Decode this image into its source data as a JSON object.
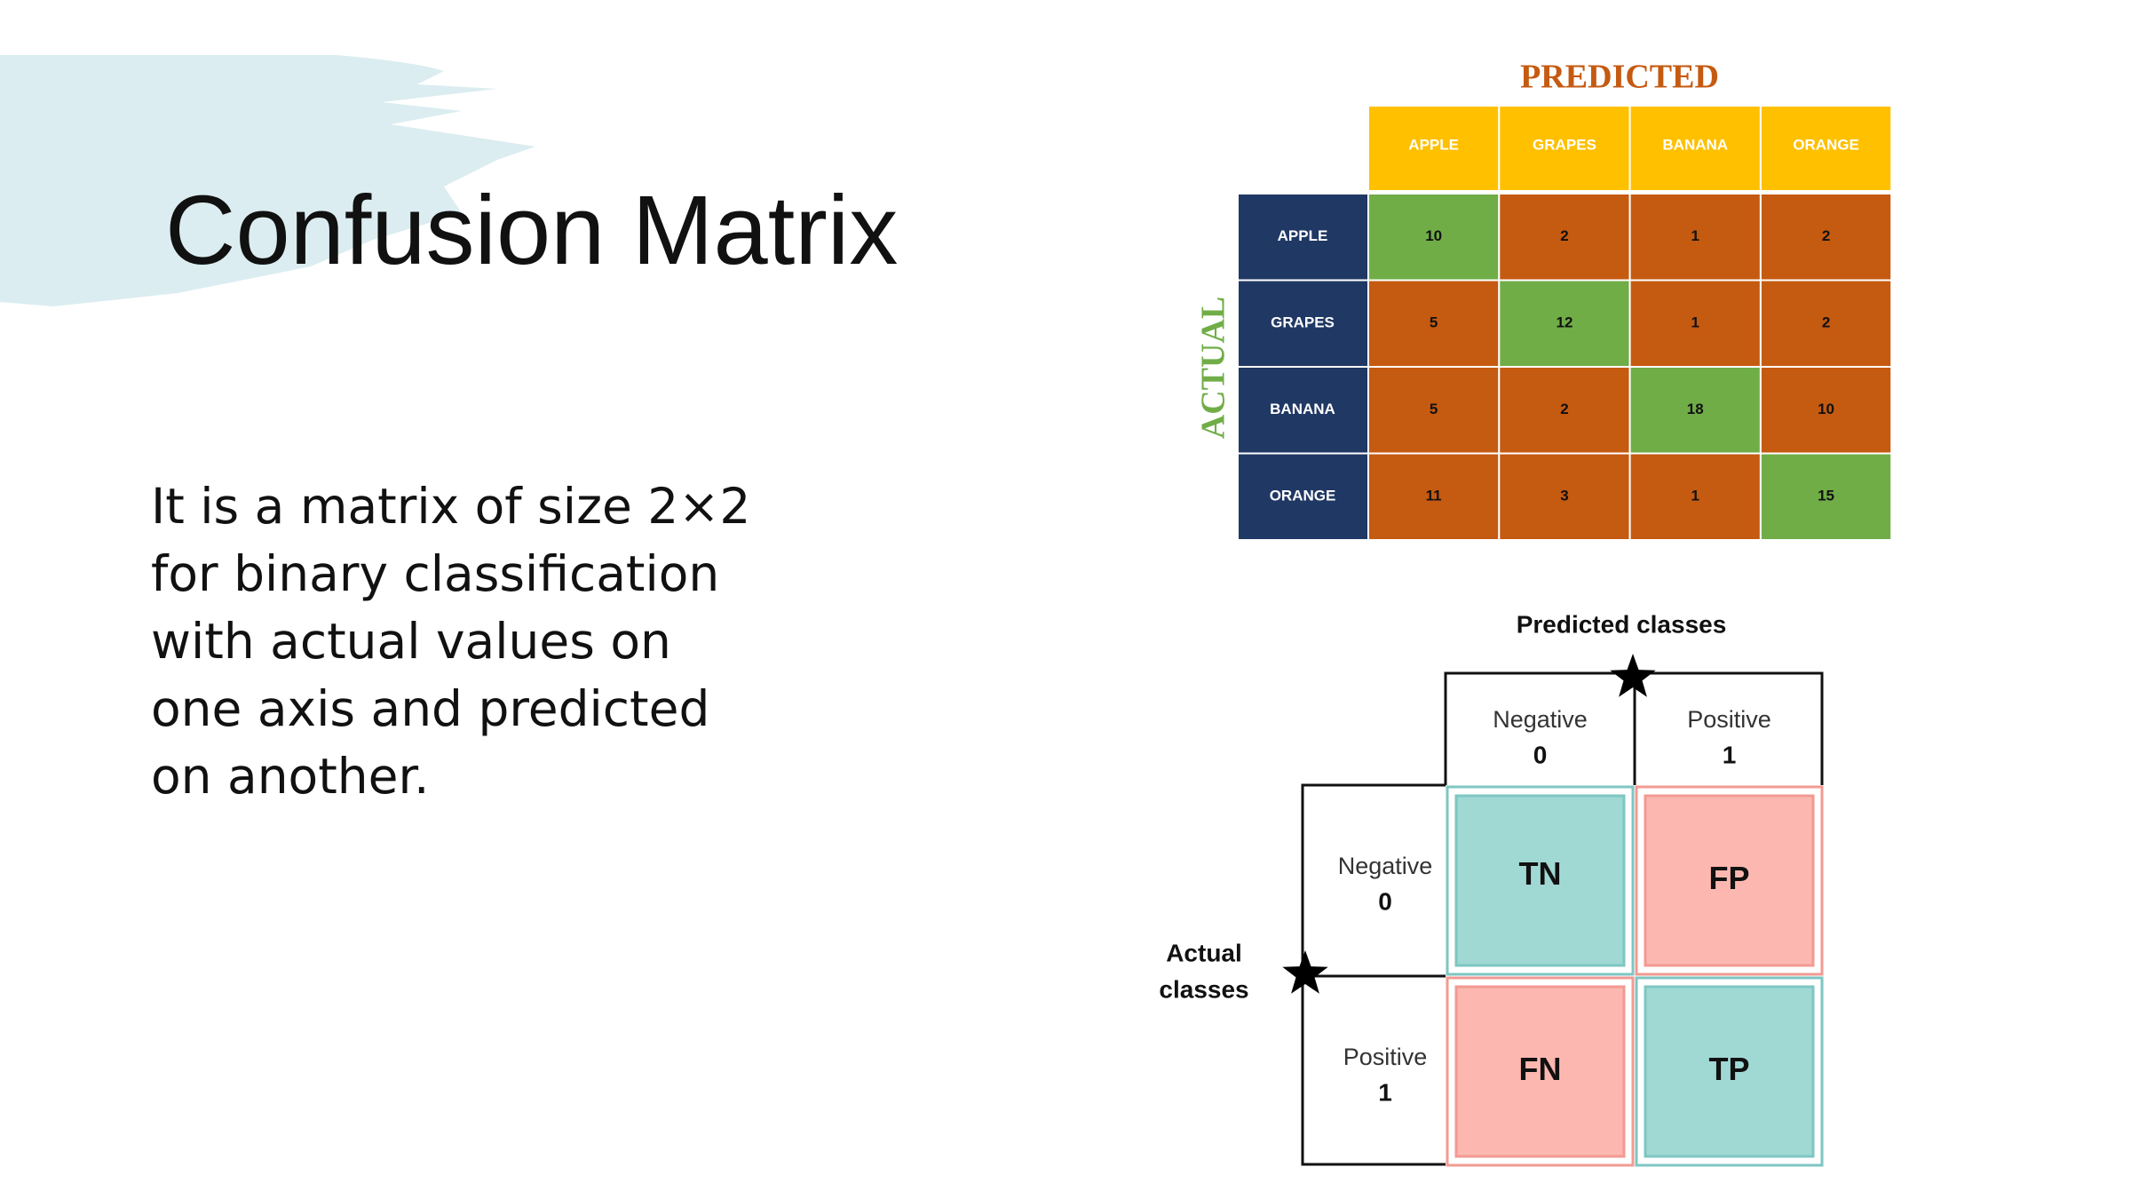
{
  "title": "Confusion Matrix",
  "body": {
    "lines": [
      "It is a matrix of size 2×2",
      "for binary classification",
      "with actual values on",
      "one axis and predicted",
      "on another."
    ]
  },
  "matrix": {
    "predicted_label": "PREDICTED",
    "actual_label": "ACTUAL",
    "columns": [
      "APPLE",
      "GRAPES",
      "BANANA",
      "ORANGE"
    ],
    "rows": [
      {
        "label": "APPLE",
        "values": [
          "10",
          "2",
          "1",
          "2"
        ]
      },
      {
        "label": "GRAPES",
        "values": [
          "5",
          "12",
          "1",
          "2"
        ]
      },
      {
        "label": "BANANA",
        "values": [
          "5",
          "2",
          "18",
          "10"
        ]
      },
      {
        "label": "ORANGE",
        "values": [
          "11",
          "3",
          "1",
          "15"
        ]
      }
    ]
  },
  "binary": {
    "predicted_label": "Predicted classes",
    "actual_label": [
      "Actual",
      "classes"
    ],
    "columns": [
      {
        "name": "Negative",
        "code": "0"
      },
      {
        "name": "Positive",
        "code": "1"
      }
    ],
    "rows": [
      {
        "name": "Negative",
        "code": "0"
      },
      {
        "name": "Positive",
        "code": "1"
      }
    ],
    "cells": [
      [
        "TN",
        "FP"
      ],
      [
        "FN",
        "TP"
      ]
    ]
  }
}
